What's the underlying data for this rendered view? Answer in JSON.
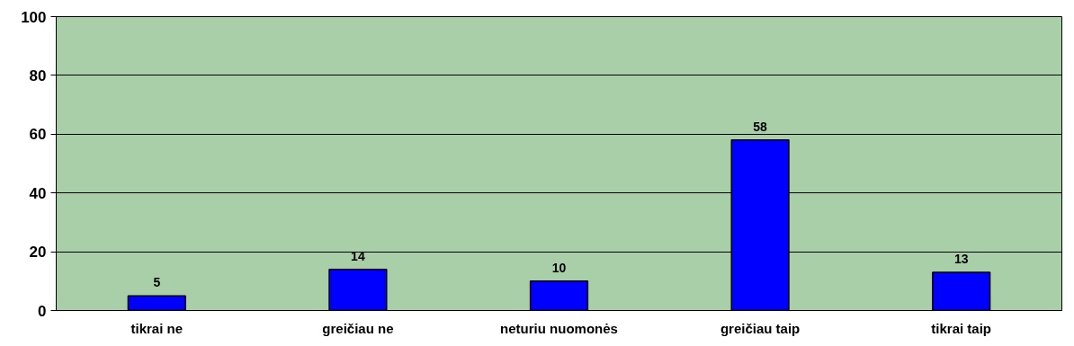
{
  "chart_data": {
    "type": "bar",
    "categories": [
      "tikrai ne",
      "greičiau ne",
      "neturiu nuomonės",
      "greičiau taip",
      "tikrai taip"
    ],
    "values": [
      5,
      14,
      10,
      58,
      13
    ],
    "color": "#0000ff",
    "ylim": [
      0,
      100
    ],
    "yticks": [
      0,
      20,
      40,
      60,
      80,
      100
    ],
    "grid": "y",
    "data_labels": true
  }
}
